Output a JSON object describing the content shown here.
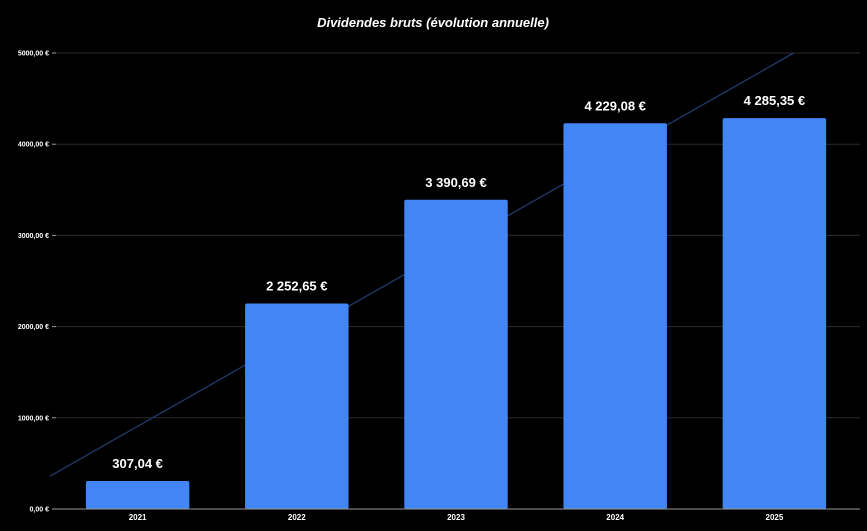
{
  "chart_data": {
    "type": "bar",
    "title": "Dividendes bruts (évolution annuelle)",
    "categories": [
      "2021",
      "2022",
      "2023",
      "2024",
      "2025"
    ],
    "values": [
      307.04,
      2252.65,
      3390.69,
      4229.08,
      4285.35
    ],
    "data_labels": [
      "307,04 €",
      "2 252,65 €",
      "3 390,69 €",
      "4 229,08 €",
      "4 285,35 €"
    ],
    "ylim": [
      0,
      5000
    ],
    "yticks": [
      0,
      1000,
      2000,
      3000,
      4000,
      5000
    ],
    "ytick_labels": [
      "0,00 €",
      "1000,00 €",
      "2000,00 €",
      "3000,00 €",
      "4000,00 €",
      "5000,00 €"
    ],
    "trendline": {
      "type": "linear",
      "color": "#1f3a6b"
    },
    "bar_color": "#4285f4",
    "background": "#000000",
    "grid": true,
    "legend": "none"
  }
}
